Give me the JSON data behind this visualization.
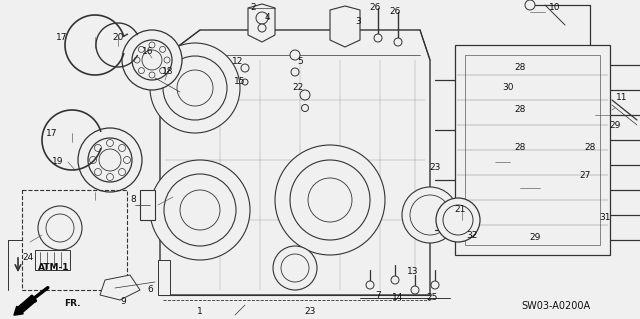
{
  "background_color": "#f0f0f0",
  "figure_width": 6.4,
  "figure_height": 3.19,
  "dpi": 100,
  "diagram_code": "SW03-A0200A",
  "label_ATM": "ATM-1",
  "label_FR": "FR.",
  "text_color": "#111111",
  "line_color": "#333333",
  "image_bg": "#f0f0f0"
}
